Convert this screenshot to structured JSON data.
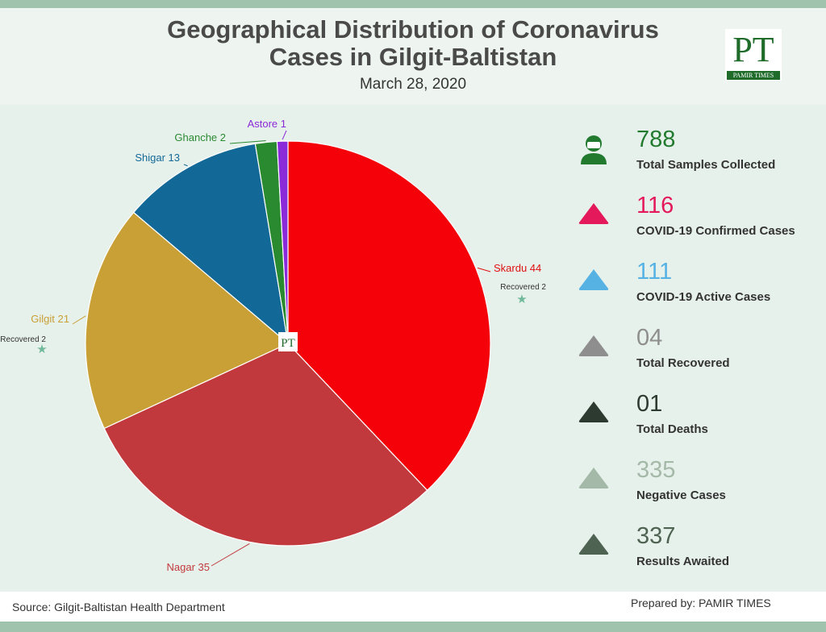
{
  "header": {
    "title_line1": "Geographical Distribution of Coronavirus",
    "title_line2": "Cases in Gilgit-Baltistan",
    "date": "March 28, 2020",
    "logo_text": "PT",
    "logo_brand": "PAMIR TIMES"
  },
  "chart_data": {
    "type": "pie",
    "start_angle_deg": 0,
    "direction": "clockwise",
    "slices": [
      {
        "label": "Skardu 44",
        "value": 44,
        "color": "#f5010a",
        "label_color": "#e01010",
        "note": "Recovered 2"
      },
      {
        "label": "Nagar 35",
        "value": 35,
        "color": "#c2393d",
        "label_color": "#c2393d"
      },
      {
        "label": "Gilgit 21",
        "value": 21,
        "color": "#c9a036",
        "label_color": "#c9a036",
        "note": "Recovered 2"
      },
      {
        "label": "Shigar 13",
        "value": 13,
        "color": "#126896",
        "label_color": "#126896"
      },
      {
        "label": "Ghanche 2",
        "value": 2,
        "color": "#2a8a30",
        "label_color": "#2a8a30"
      },
      {
        "label": "Astore 1",
        "value": 1,
        "color": "#8a2ad8",
        "label_color": "#8a2ad8"
      }
    ],
    "center_logo_text": "PT"
  },
  "stats": [
    {
      "value": "788",
      "label": "Total Samples Collected",
      "color": "#217a2e",
      "icon": "user-mask-icon"
    },
    {
      "value": "116",
      "label": "COVID-19 Confirmed Cases",
      "color": "#e4195c",
      "icon": "triangle-icon"
    },
    {
      "value": "111",
      "label": "COVID-19 Active Cases",
      "color": "#57b2e4",
      "icon": "triangle-icon"
    },
    {
      "value": "04",
      "label": "Total Recovered",
      "color": "#8e8e8e",
      "icon": "triangle-icon"
    },
    {
      "value": "01",
      "label": "Total Deaths",
      "color": "#2d3a30",
      "icon": "triangle-icon"
    },
    {
      "value": "335",
      "label": "Negative Cases",
      "color": "#a5b9a9",
      "icon": "triangle-icon"
    },
    {
      "value": "337",
      "label": "Results Awaited",
      "color": "#4e6352",
      "icon": "triangle-icon"
    }
  ],
  "footer": {
    "source": "Source: Gilgit-Baltistan Health Department",
    "prepared": "Prepared by: PAMIR TIMES"
  }
}
